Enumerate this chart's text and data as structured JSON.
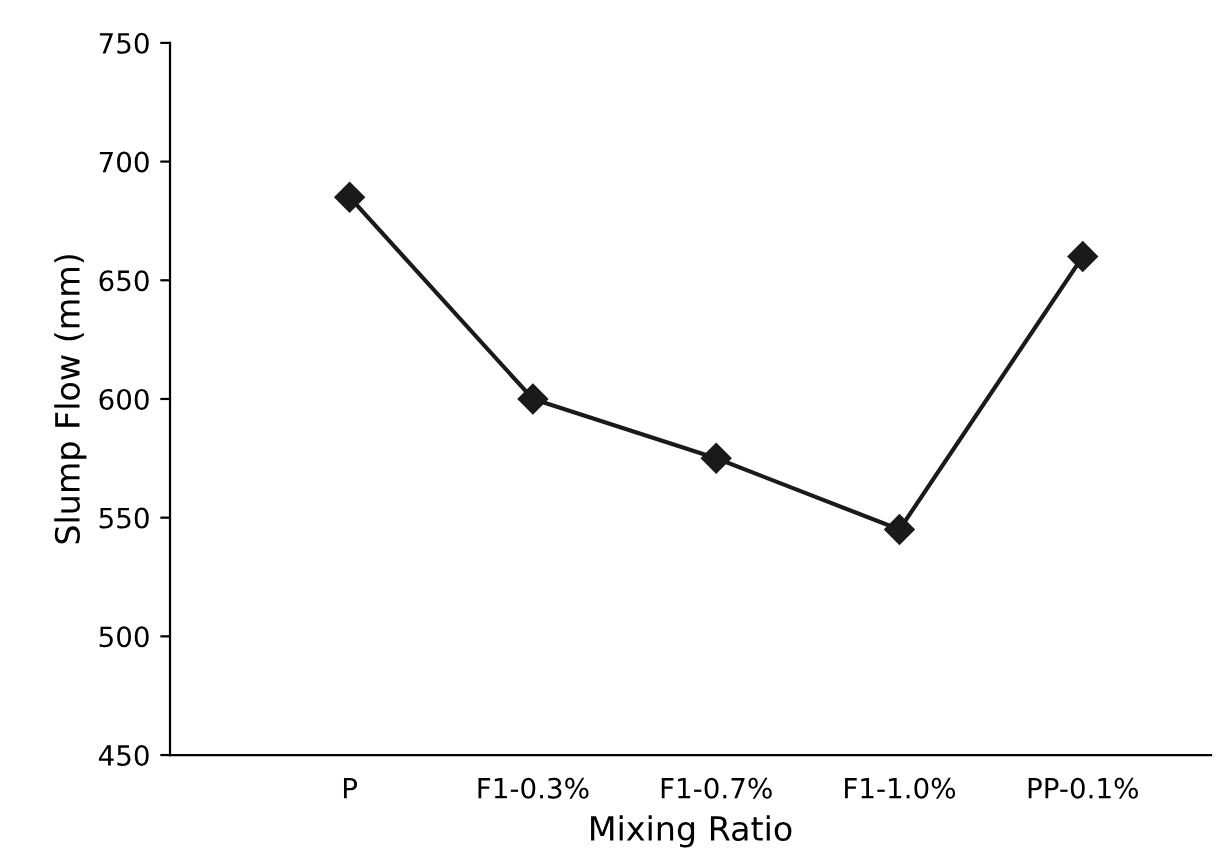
{
  "chart_data": {
    "type": "line",
    "xlabel": "Mixing Ratio",
    "ylabel": "Slump Flow (mm)",
    "categories": [
      "P",
      "F1-0.3%",
      "F1-0.7%",
      "F1-1.0%",
      "PP-0.1%"
    ],
    "values": [
      685,
      600,
      575,
      545,
      660
    ],
    "color": "#1a1a1a",
    "marker": "diamond",
    "line_style": "solid",
    "ylim": [
      450,
      750
    ],
    "yticks": [
      450,
      500,
      550,
      600,
      650,
      700,
      750
    ],
    "grid": false,
    "legend": false
  }
}
